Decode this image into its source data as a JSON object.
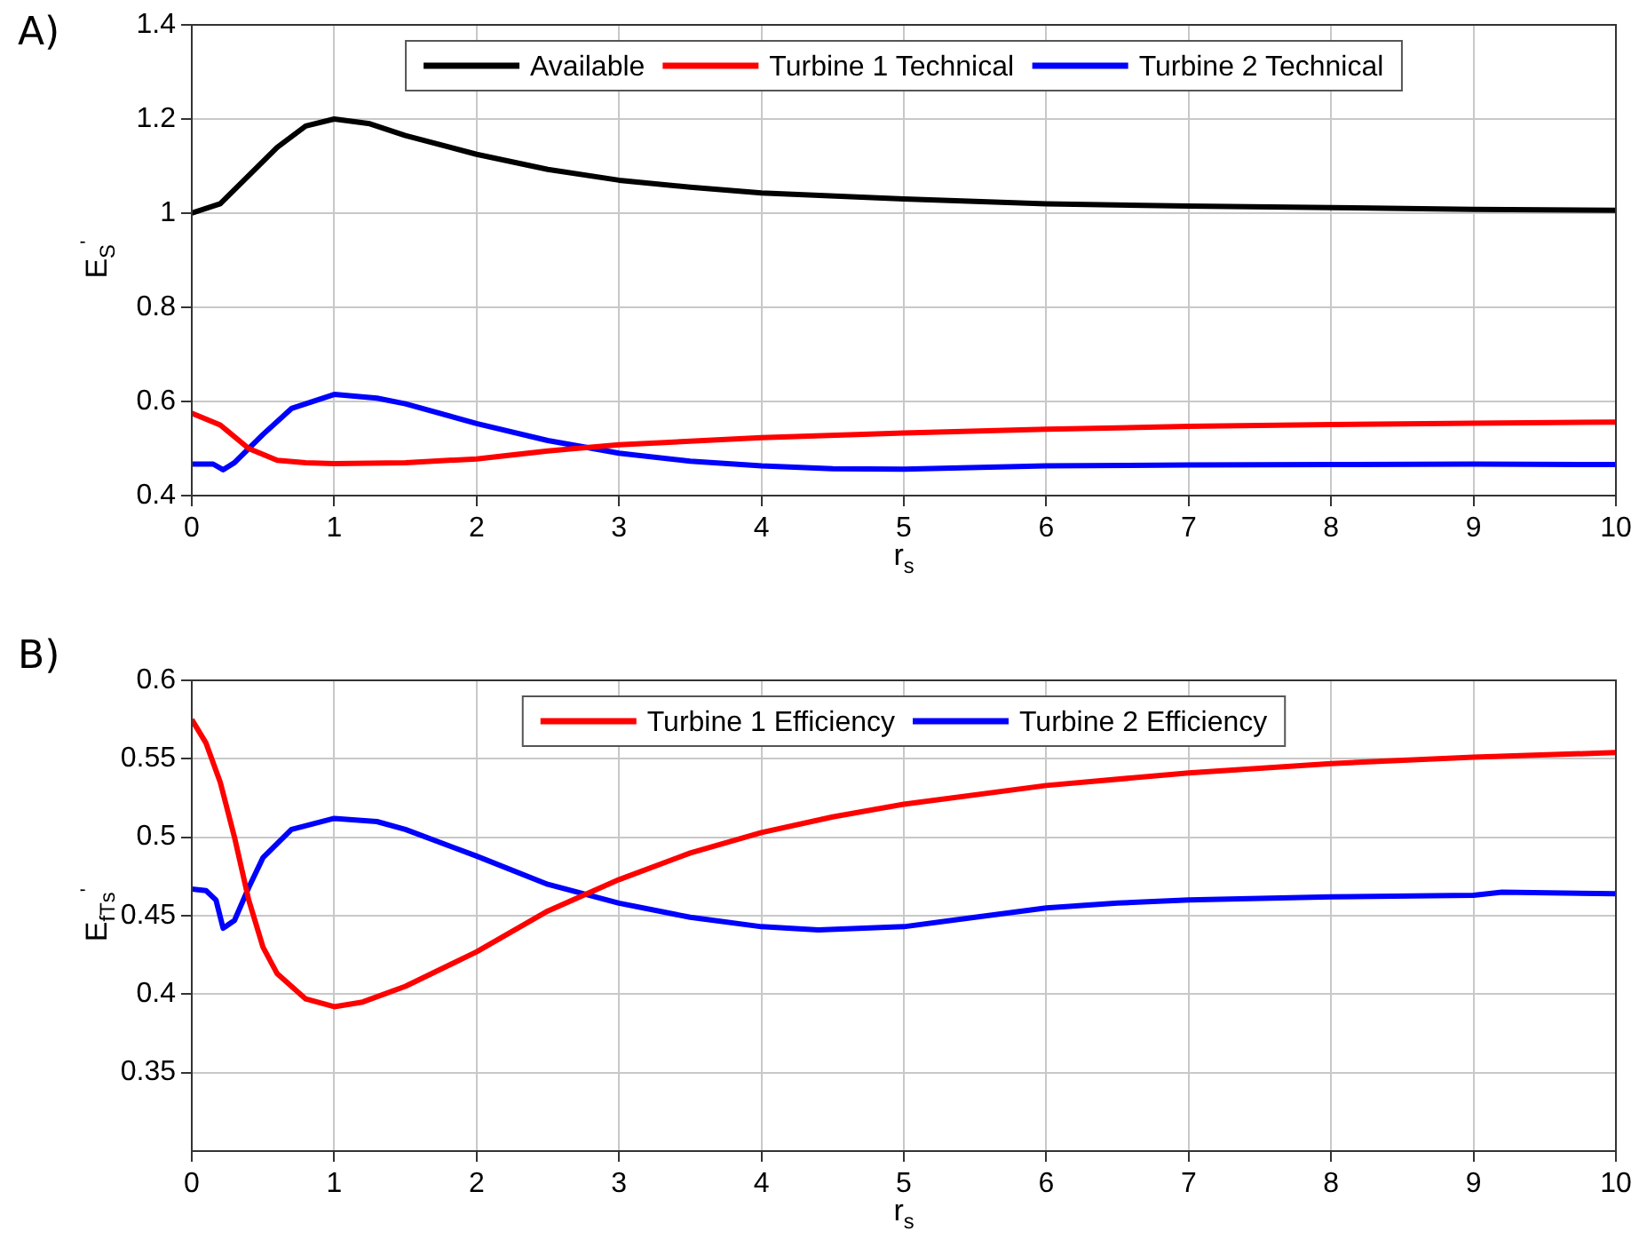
{
  "chart_data": [
    {
      "type": "line",
      "title": "A)",
      "xlabel": "r$_{s}$",
      "ylabel": "E$_{S}$$^{'}$",
      "xlim": [
        0,
        10
      ],
      "xticks": [
        0,
        1,
        2,
        3,
        4,
        5,
        6,
        7,
        8,
        9,
        10
      ],
      "ylim": [
        0.4,
        1.4
      ],
      "yticks": [
        0.4,
        0.6,
        0.8,
        1,
        1.2,
        1.4
      ],
      "grid": true,
      "legend": "top",
      "series": [
        {
          "name": "Available",
          "color": "#000000",
          "x": [
            0,
            0.2,
            0.4,
            0.6,
            0.8,
            1,
            1.25,
            1.5,
            2,
            2.5,
            3,
            3.5,
            4,
            5,
            6,
            7,
            8,
            9,
            10
          ],
          "values": [
            1.0,
            1.02,
            1.08,
            1.14,
            1.185,
            1.2,
            1.19,
            1.165,
            1.125,
            1.093,
            1.07,
            1.055,
            1.043,
            1.03,
            1.02,
            1.015,
            1.012,
            1.008,
            1.006
          ]
        },
        {
          "name": "Turbine 1 Technical",
          "color": "#ff0000",
          "x": [
            0,
            0.2,
            0.4,
            0.6,
            0.8,
            1,
            1.5,
            2,
            2.5,
            3,
            4,
            5,
            6,
            7,
            8,
            9,
            10
          ],
          "values": [
            0.575,
            0.55,
            0.5,
            0.475,
            0.47,
            0.468,
            0.47,
            0.478,
            0.495,
            0.508,
            0.523,
            0.533,
            0.541,
            0.547,
            0.551,
            0.554,
            0.556
          ]
        },
        {
          "name": "Turbine 2 Technical",
          "color": "#0000ff",
          "x": [
            0,
            0.15,
            0.22,
            0.3,
            0.5,
            0.7,
            1,
            1.3,
            1.5,
            2,
            2.5,
            3,
            3.5,
            4,
            4.5,
            5,
            6,
            7,
            8,
            9,
            10
          ],
          "values": [
            0.467,
            0.467,
            0.455,
            0.47,
            0.53,
            0.585,
            0.615,
            0.607,
            0.595,
            0.553,
            0.517,
            0.49,
            0.473,
            0.463,
            0.457,
            0.456,
            0.463,
            0.465,
            0.466,
            0.467,
            0.466
          ]
        }
      ]
    },
    {
      "type": "line",
      "title": "B)",
      "xlabel": "r$_{s}$",
      "ylabel": "E$_{fT}$$_{s}$$^{'}$",
      "xlim": [
        0,
        10
      ],
      "xticks": [
        0,
        1,
        2,
        3,
        4,
        5,
        6,
        7,
        8,
        9,
        10
      ],
      "ylim": [
        0.3,
        0.6
      ],
      "yticks": [
        0.35,
        0.4,
        0.45,
        0.5,
        0.55,
        0.6
      ],
      "grid": true,
      "legend": "top",
      "series": [
        {
          "name": "Turbine 1 Efficiency",
          "color": "#ff0000",
          "x": [
            0,
            0.1,
            0.2,
            0.3,
            0.4,
            0.5,
            0.6,
            0.8,
            1,
            1.2,
            1.5,
            2,
            2.5,
            3,
            3.5,
            4,
            4.5,
            5,
            6,
            7,
            8,
            9,
            10
          ],
          "values": [
            0.575,
            0.56,
            0.535,
            0.5,
            0.46,
            0.43,
            0.413,
            0.397,
            0.392,
            0.395,
            0.405,
            0.427,
            0.453,
            0.473,
            0.49,
            0.503,
            0.513,
            0.521,
            0.533,
            0.541,
            0.547,
            0.551,
            0.554
          ]
        },
        {
          "name": "Turbine 2 Efficiency",
          "color": "#0000ff",
          "x": [
            0,
            0.1,
            0.17,
            0.22,
            0.3,
            0.4,
            0.5,
            0.7,
            1,
            1.3,
            1.5,
            2,
            2.5,
            3,
            3.5,
            4,
            4.4,
            5,
            5.5,
            6,
            6.5,
            7,
            8,
            9,
            9.2,
            10
          ],
          "values": [
            0.467,
            0.466,
            0.46,
            0.442,
            0.447,
            0.468,
            0.487,
            0.505,
            0.512,
            0.51,
            0.505,
            0.488,
            0.47,
            0.458,
            0.449,
            0.443,
            0.441,
            0.443,
            0.449,
            0.455,
            0.458,
            0.46,
            0.462,
            0.463,
            0.465,
            0.464
          ]
        }
      ]
    }
  ]
}
